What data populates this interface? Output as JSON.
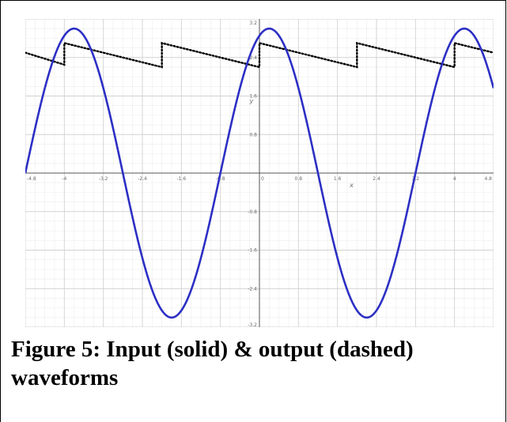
{
  "figure": {
    "caption": "Figure 5: Input (solid) & output (dashed) waveforms"
  },
  "chart_data": {
    "type": "line",
    "xlabel": "x",
    "ylabel": "y",
    "xlim": [
      -4.8,
      4.8
    ],
    "ylim": [
      -3.2,
      3.2
    ],
    "grid": true,
    "x_ticks": [
      "-4.8",
      "-4",
      "-3.2",
      "-2.4",
      "-1.6",
      "-0.8",
      "0",
      "0.8",
      "1.6",
      "2.4",
      "3.2",
      "4",
      "4.8"
    ],
    "y_ticks": [
      "3.2",
      "2.4",
      "1.6",
      "0.8",
      "-0.8",
      "-1.6",
      "-2.4",
      "-3.2"
    ],
    "series": [
      {
        "style": "solid",
        "color": "#2c2fc4",
        "function": "3*cos(pi*(x-0.2)/2)",
        "amplitude": 3,
        "period": 4,
        "peak_x": [
          -3.8,
          0.2,
          4.2
        ],
        "min_y": -3,
        "max_y": 3
      },
      {
        "style": "dotted",
        "color": "#000000",
        "segments": [
          [
            [
              -4.8,
              2.5
            ],
            [
              -4.0,
              2.25
            ]
          ],
          [
            [
              -4.0,
              2.7
            ],
            [
              -2.0,
              2.2
            ]
          ],
          [
            [
              -2.0,
              2.7
            ],
            [
              0.0,
              2.2
            ]
          ],
          [
            [
              0.0,
              2.7
            ],
            [
              2.0,
              2.2
            ]
          ],
          [
            [
              2.0,
              2.7
            ],
            [
              4.0,
              2.2
            ]
          ],
          [
            [
              4.0,
              2.7
            ],
            [
              4.8,
              2.5
            ]
          ]
        ]
      }
    ]
  }
}
